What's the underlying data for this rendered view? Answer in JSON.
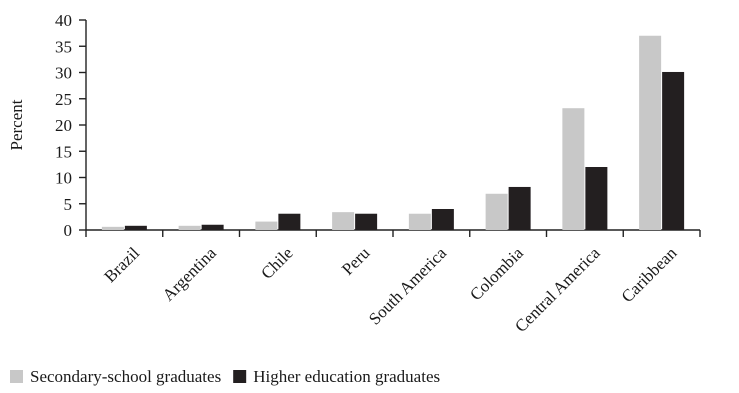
{
  "chart_data": {
    "type": "bar",
    "ylabel": "Percent",
    "xlabel": "",
    "ylim": [
      0,
      40
    ],
    "yticks": [
      0,
      5,
      10,
      15,
      20,
      25,
      30,
      35,
      40
    ],
    "categories": [
      "Brazil",
      "Argentina",
      "Chile",
      "Peru",
      "South America",
      "Colombia",
      "Central America",
      "Caribbean"
    ],
    "series": [
      {
        "name": "Secondary-school graduates",
        "color": "#c8c8c8",
        "values": [
          0.6,
          0.8,
          1.6,
          3.4,
          3.1,
          6.9,
          23.2,
          37.0
        ]
      },
      {
        "name": "Higher education graduates",
        "color": "#231f20",
        "values": [
          0.8,
          1.0,
          3.1,
          3.1,
          4.0,
          8.2,
          12.0,
          30.1
        ]
      }
    ],
    "legend_position": "bottom-left",
    "grid": false
  }
}
